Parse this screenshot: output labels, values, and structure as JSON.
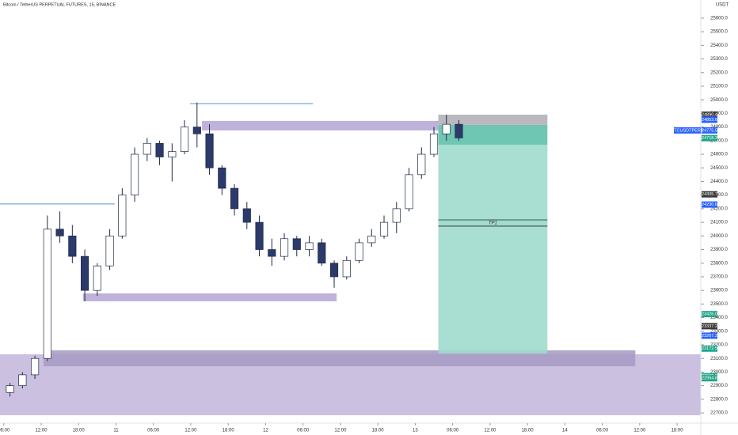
{
  "chart_data": {
    "type": "candlestick",
    "title": "Bitcoin / TetherUS PERPETUAL FUTURES, 15, BINANCE",
    "y_unit": "USDT",
    "xlim": [
      -0.6,
      111.8
    ],
    "ylim": [
      22625,
      25733
    ],
    "xticks": [
      {
        "value": 0,
        "label": "06:00"
      },
      {
        "value": 6,
        "label": "12:00"
      },
      {
        "value": 12,
        "label": "18:00"
      },
      {
        "value": 18,
        "label": "11"
      },
      {
        "value": 24,
        "label": "06:00"
      },
      {
        "value": 30,
        "label": "12:00"
      },
      {
        "value": 36,
        "label": "18:00"
      },
      {
        "value": 42,
        "label": "12"
      },
      {
        "value": 48,
        "label": "06:00"
      },
      {
        "value": 54,
        "label": "12:00"
      },
      {
        "value": 60,
        "label": "18:00"
      },
      {
        "value": 66,
        "label": "13"
      },
      {
        "value": 72,
        "label": "06:00"
      },
      {
        "value": 78,
        "label": "12:00"
      },
      {
        "value": 84,
        "label": "18:00"
      },
      {
        "value": 90,
        "label": "14"
      },
      {
        "value": 96,
        "label": "06:00"
      },
      {
        "value": 102,
        "label": "12:00"
      },
      {
        "value": 108,
        "label": "18:00"
      }
    ],
    "yticks": [
      {
        "value": 22700,
        "label": "22700.0"
      },
      {
        "value": 22800,
        "label": "22800.0"
      },
      {
        "value": 22900,
        "label": "22900.0"
      },
      {
        "value": 23000,
        "label": "23000.0"
      },
      {
        "value": 23100,
        "label": "23100.0"
      },
      {
        "value": 23200,
        "label": "23200.0"
      },
      {
        "value": 23300,
        "label": "23300.0"
      },
      {
        "value": 23400,
        "label": "23400.0"
      },
      {
        "value": 23500,
        "label": "23500.0"
      },
      {
        "value": 23600,
        "label": "23600.0"
      },
      {
        "value": 23700,
        "label": "23700.0"
      },
      {
        "value": 23800,
        "label": "23800.0"
      },
      {
        "value": 23900,
        "label": "23900.0"
      },
      {
        "value": 24000,
        "label": "24000.0"
      },
      {
        "value": 24100,
        "label": "24100.0"
      },
      {
        "value": 24200,
        "label": "24200.0"
      },
      {
        "value": 24300,
        "label": "24300.0"
      },
      {
        "value": 24400,
        "label": "24400.0"
      },
      {
        "value": 24500,
        "label": "24500.0"
      },
      {
        "value": 24600,
        "label": "24600.0"
      },
      {
        "value": 24700,
        "label": "24700.0"
      },
      {
        "value": 24800,
        "label": "24800.0"
      },
      {
        "value": 24900,
        "label": "24900.0"
      },
      {
        "value": 25000,
        "label": "25000.0"
      },
      {
        "value": 25100,
        "label": "25100.0"
      },
      {
        "value": 25200,
        "label": "25200.0"
      },
      {
        "value": 25300,
        "label": "25300.0"
      },
      {
        "value": 25400,
        "label": "25400.0"
      },
      {
        "value": 25500,
        "label": "25500.0"
      },
      {
        "value": 25600,
        "label": "25600.0"
      }
    ],
    "up_color": "#ffffff",
    "down_color": "#2b3a6b",
    "wick_color": "#1e2a44",
    "candles": {
      "x": [
        0,
        2,
        4,
        6,
        8,
        10,
        12,
        14,
        16,
        18,
        20,
        22,
        24,
        26,
        28,
        30,
        32,
        34,
        36,
        38,
        40,
        42,
        44,
        46,
        48,
        50,
        52,
        54,
        56,
        58,
        60,
        62,
        64,
        66,
        68,
        70,
        72
      ],
      "open": [
        22850,
        22900,
        22980,
        23100,
        24050,
        24000,
        23850,
        23600,
        23780,
        24000,
        24300,
        24600,
        24680,
        24580,
        24620,
        24800,
        24750,
        24500,
        24350,
        24200,
        24100,
        23900,
        23850,
        23980,
        23900,
        23950,
        23800,
        23700,
        23820,
        23950,
        24000,
        24100,
        24200,
        24450,
        24600,
        24750,
        24820
      ],
      "high": [
        22920,
        23000,
        23120,
        24150,
        24180,
        24080,
        23900,
        23800,
        24050,
        24350,
        24650,
        24720,
        24700,
        24680,
        24850,
        24980,
        24820,
        24520,
        24380,
        24250,
        24150,
        23980,
        24020,
        24000,
        24000,
        23980,
        23820,
        23850,
        23980,
        24050,
        24150,
        24250,
        24500,
        24650,
        24800,
        24890,
        24850
      ],
      "low": [
        22820,
        22880,
        22950,
        23080,
        23950,
        23800,
        23520,
        23560,
        23750,
        23980,
        24250,
        24550,
        24520,
        24400,
        24600,
        24650,
        24450,
        24300,
        24150,
        24050,
        23850,
        23780,
        23820,
        23850,
        23850,
        23780,
        23620,
        23680,
        23800,
        23920,
        23980,
        24020,
        24180,
        24420,
        24580,
        24700,
        24700
      ],
      "close": [
        22900,
        22980,
        23100,
        24050,
        24000,
        23850,
        23600,
        23780,
        24000,
        24300,
        24600,
        24680,
        24580,
        24620,
        24800,
        24750,
        24500,
        24350,
        24200,
        24100,
        23900,
        23850,
        23980,
        23900,
        23950,
        23800,
        23700,
        23820,
        23950,
        24000,
        24100,
        24200,
        24450,
        24600,
        24750,
        24820,
        24720
      ]
    },
    "zones": [
      {
        "x": [
          -0.6,
          111.8
        ],
        "y": [
          22683,
          23131
        ],
        "color": "#c5b9dc"
      },
      {
        "x": [
          6.4,
          101.3
        ],
        "y": [
          23043,
          23160
        ],
        "color": "#a99cc7"
      },
      {
        "x": [
          31.8,
          69.7
        ],
        "y": [
          24775,
          24845
        ],
        "color": "#b7aad6"
      },
      {
        "x": [
          12.7,
          53.4
        ],
        "y": [
          23520,
          23578
        ],
        "color": "#b7aad6"
      },
      {
        "x": [
          69.7,
          87.2
        ],
        "y": [
          23137,
          24670
        ],
        "color": "#9fdccd"
      },
      {
        "x": [
          69.7,
          87.2
        ],
        "y": [
          24670,
          24816
        ],
        "color": "#5fc0ab"
      },
      {
        "x": [
          69.7,
          87.2
        ],
        "y": [
          24816,
          24891
        ],
        "color": "#b4b0b8"
      },
      {
        "x": [
          69.7,
          87.2
        ],
        "y": [
          24072,
          24118
        ],
        "color": "#9fdccd"
      }
    ],
    "target_label": "TP1",
    "hlines": [
      {
        "x": [
          29.9,
          49.6
        ],
        "y": 24972,
        "color": "#5b8fd6"
      },
      {
        "x": [
          -0.6,
          17.8
        ],
        "y": 24235,
        "color": "#5b8fd6"
      }
    ],
    "price_badges": [
      {
        "value": 24890.4,
        "label": "24890.4",
        "color": "#3a3a3a"
      },
      {
        "value": 24853.6,
        "label": "24853.6",
        "color": "#2962ff"
      },
      {
        "value": 24775.5,
        "label": "24775.5",
        "color": "#2962ff"
      },
      {
        "value": 24718.3,
        "label": "24718.3",
        "color": "#22a58a"
      },
      {
        "value": 24305.7,
        "label": "24305.7",
        "color": "#3a3a3a"
      },
      {
        "value": 24230.6,
        "label": "24230.6",
        "color": "#2962ff"
      },
      {
        "value": 23426.0,
        "label": "23426.0",
        "color": "#22a58a"
      },
      {
        "value": 23337.2,
        "label": "23337.2",
        "color": "#3a3a3a"
      },
      {
        "value": 23267.3,
        "label": "23267.3",
        "color": "#2962ff"
      },
      {
        "value": 23172.5,
        "label": "23172.5",
        "color": "#22a58a"
      },
      {
        "value": 22969.9,
        "label": "22969.9",
        "color": "#22a58a"
      },
      {
        "value": 22954.8,
        "label": "22954.8",
        "color": "#22a58a"
      }
    ],
    "symbol_badge": {
      "label": "BTCUSDTPERP",
      "value": 24775.5,
      "color": "#2962ff"
    }
  }
}
